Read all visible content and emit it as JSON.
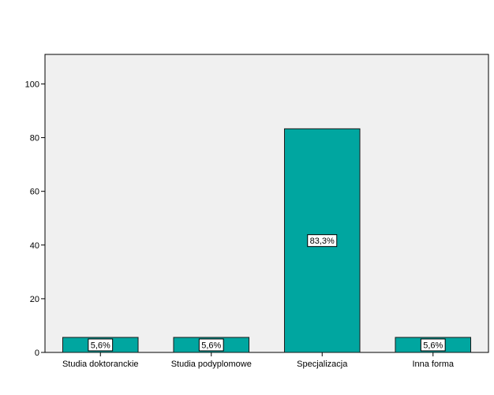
{
  "chart_data": {
    "type": "bar",
    "categories": [
      "Studia doktoranckie",
      "Studia podyplomowe",
      "Specjalizacja",
      "Inna forma"
    ],
    "values": [
      5.6,
      5.6,
      83.3,
      5.6
    ],
    "data_labels": [
      "5,6%",
      "5,6%",
      "83,3%",
      "5,6%"
    ],
    "y_ticks": [
      0,
      20,
      40,
      60,
      80,
      100
    ],
    "ylim": [
      0,
      111
    ],
    "title": "",
    "xlabel": "",
    "ylabel": "",
    "grid": false,
    "colors": {
      "bar_fill": "#00a6a0",
      "bar_stroke": "#1a1a1a",
      "plot_background": "#f0f0f0",
      "label_box": "#ffffff"
    }
  }
}
